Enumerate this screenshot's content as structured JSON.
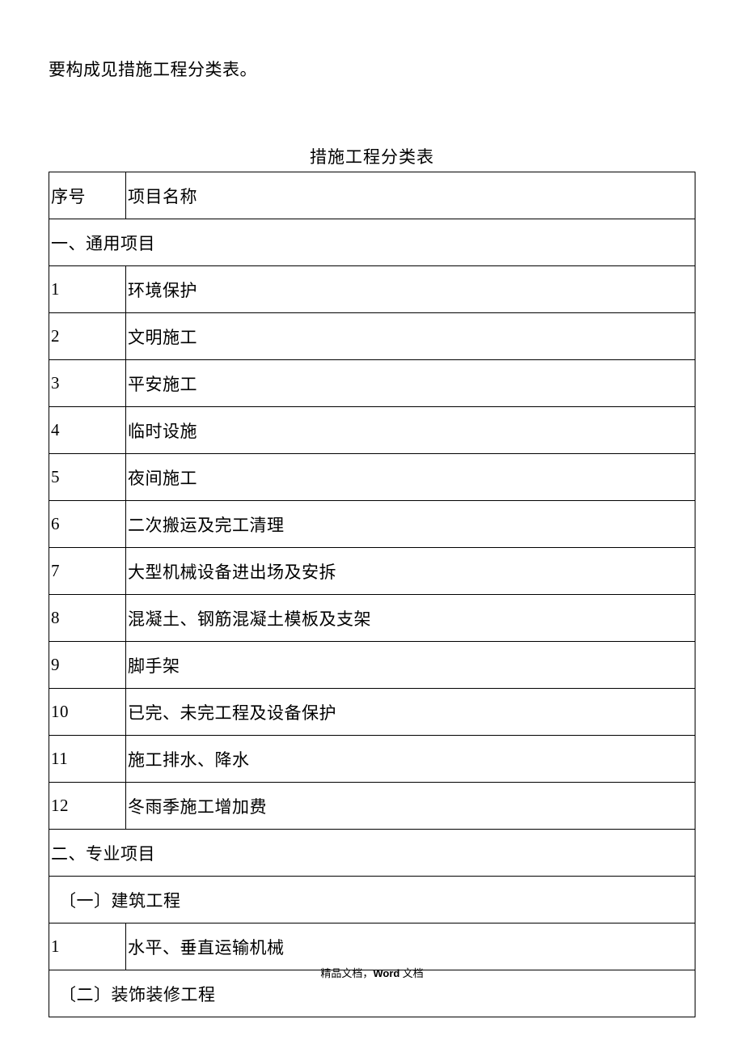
{
  "intro": "要构成见措施工程分类表。",
  "caption": "措施工程分类表",
  "header": {
    "seq": "序号",
    "name": "项目名称"
  },
  "section1": "一、通用项目",
  "rows1": [
    {
      "seq": "1",
      "name": "环境保护"
    },
    {
      "seq": "2",
      "name": "文明施工"
    },
    {
      "seq": "3",
      "name": "平安施工"
    },
    {
      "seq": "4",
      "name": "临时设施"
    },
    {
      "seq": "5",
      "name": "夜间施工"
    },
    {
      "seq": "6",
      "name": "二次搬运及完工清理"
    },
    {
      "seq": "7",
      "name": "大型机械设备进出场及安拆"
    },
    {
      "seq": "8",
      "name": "混凝土、钢筋混凝土模板及支架"
    },
    {
      "seq": "9",
      "name": "脚手架"
    },
    {
      "seq": "10",
      "name": "已完、未完工程及设备保护"
    },
    {
      "seq": "11",
      "name": "施工排水、降水"
    },
    {
      "seq": "12",
      "name": "冬雨季施工增加费"
    }
  ],
  "section2": "二、专业项目",
  "sub1": "〔一〕建筑工程",
  "rows2": [
    {
      "seq": "1",
      "name": "水平、垂直运输机械"
    }
  ],
  "sub2": "〔二〕装饰装修工程",
  "footer": {
    "a": "精品文档，",
    "b": "Word",
    "c": " 文档"
  }
}
